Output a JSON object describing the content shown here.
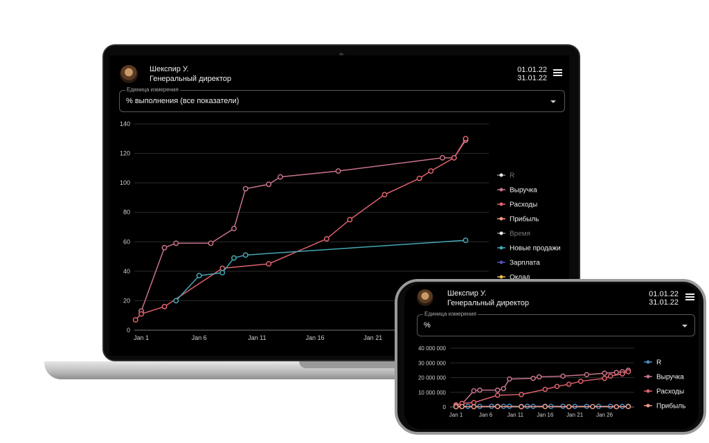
{
  "user": {
    "name": "Шекспир У.",
    "role": "Генеральный директор"
  },
  "period": {
    "start": "01.01.22",
    "end": "31.01.22"
  },
  "laptop": {
    "unit_label": "Единица измерения",
    "unit_value": "% выполнения (все показатели)",
    "chart_data": {
      "type": "line",
      "y_ticks": [
        "0",
        "20",
        "40",
        "60",
        "80",
        "100",
        "120",
        "140"
      ],
      "x_ticks": [
        "Jan 1",
        "Jan 6",
        "Jan 11",
        "Jan 16",
        "Jan 21"
      ],
      "ylim": [
        0,
        140
      ],
      "xlim": [
        0.4,
        31
      ],
      "grid": true,
      "legend_position": "right",
      "series": [
        {
          "name": "R",
          "color": "#e8e8e8",
          "muted": true,
          "values": []
        },
        {
          "name": "Выручка",
          "color": "#c9748a",
          "muted": false,
          "x": [
            1,
            3,
            4,
            7,
            9,
            10,
            12,
            13,
            18,
            27,
            28,
            29
          ],
          "values": [
            13,
            56,
            59,
            59,
            69,
            96,
            99,
            104,
            108,
            117,
            117,
            129
          ]
        },
        {
          "name": "Расходы",
          "color": "#e0636e",
          "muted": false,
          "x": [
            0.5,
            1,
            3,
            8,
            12,
            17,
            19,
            22,
            25,
            26,
            28,
            29
          ],
          "values": [
            7,
            11,
            16,
            42,
            45,
            62,
            75,
            92,
            103,
            108,
            117,
            130
          ]
        },
        {
          "name": "Прибыль",
          "color": "#f19a86",
          "muted": false,
          "values": []
        },
        {
          "name": "Время",
          "color": "#aaaaaa",
          "muted": true,
          "values": []
        },
        {
          "name": "Новые продажи",
          "color": "#46a7b5",
          "muted": false,
          "x": [
            4,
            6,
            8,
            9,
            10,
            29
          ],
          "values": [
            20,
            37,
            39,
            49,
            51,
            61
          ]
        },
        {
          "name": "Зарплата",
          "color": "#5550b4",
          "muted": false,
          "values": []
        },
        {
          "name": "Оклад",
          "color": "#e6b84c",
          "muted": false,
          "values": []
        }
      ]
    }
  },
  "phone": {
    "unit_label": "Единица измерения",
    "unit_value": "%",
    "chart_data": {
      "type": "line",
      "y_ticks": [
        "0",
        "10 000 000",
        "20 000 000",
        "30 000 000",
        "40 000 000"
      ],
      "x_ticks": [
        "Jan 1",
        "Jan 6",
        "Jan 11",
        "Jan 16",
        "Jan 21",
        "Jan 26"
      ],
      "ylim": [
        0,
        40000000
      ],
      "xlim": [
        0,
        31
      ],
      "grid": true,
      "legend_position": "right",
      "series": [
        {
          "name": "R",
          "color": "#4a8bc2",
          "x": [
            1,
            3,
            5,
            7,
            8,
            9,
            10,
            12,
            13,
            14,
            16,
            17,
            19,
            21,
            23,
            25,
            27,
            29,
            30
          ],
          "values": [
            500000,
            400000,
            400000,
            500000,
            500000,
            400000,
            500000,
            400000,
            500000,
            400000,
            500000,
            400000,
            500000,
            400000,
            500000,
            400000,
            500000,
            400000,
            500000
          ]
        },
        {
          "name": "Выручка",
          "color": "#c9748a",
          "x": [
            1,
            2,
            4,
            5,
            8,
            9,
            10,
            14,
            15,
            19,
            23,
            26,
            28,
            29,
            30
          ],
          "values": [
            1500000,
            2000000,
            11000000,
            11500000,
            11500000,
            12500000,
            19000000,
            19500000,
            20500000,
            21000000,
            22000000,
            23000000,
            23500000,
            24000000,
            25000000
          ]
        },
        {
          "name": "Расходы",
          "color": "#e0636e",
          "x": [
            1,
            2,
            4,
            8,
            12,
            16,
            18,
            20,
            22,
            26,
            27,
            29,
            30
          ],
          "values": [
            1000000,
            2500000,
            3000000,
            8000000,
            8500000,
            12000000,
            14000000,
            15500000,
            17500000,
            19500000,
            21000000,
            22500000,
            24000000
          ]
        },
        {
          "name": "Прибыль",
          "color": "#f19a86",
          "x": [
            1,
            2,
            4,
            8,
            12,
            16,
            20,
            24,
            28,
            30
          ],
          "values": [
            200000,
            300000,
            200000,
            300000,
            200000,
            300000,
            200000,
            300000,
            200000,
            300000
          ]
        }
      ]
    }
  }
}
